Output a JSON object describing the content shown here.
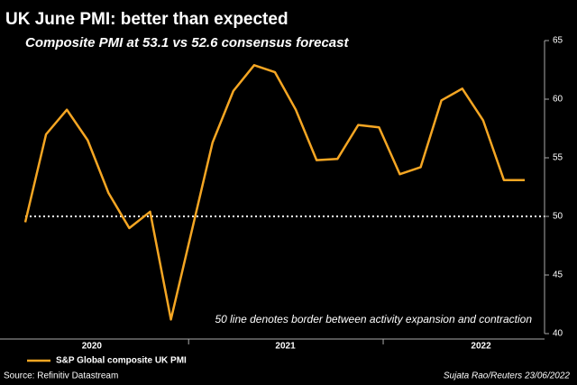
{
  "chart_data": {
    "type": "line",
    "title": "UK June PMI: better than expected",
    "subtitle": "Composite PMI at 53.1 vs 52.6 consensus forecast",
    "x": [
      0,
      1,
      2,
      3,
      4,
      5,
      6,
      7,
      9,
      10,
      11,
      12,
      13,
      14,
      15,
      16,
      17,
      18,
      19,
      20,
      21,
      22,
      23,
      24
    ],
    "series": [
      {
        "name": "S&P Global composite UK PMI",
        "color": "#f5a623",
        "values": [
          49.5,
          57,
          59.1,
          56.5,
          52,
          49,
          50.4,
          41.2,
          56.3,
          60.7,
          62.9,
          62.3,
          59.1,
          54.8,
          54.9,
          57.8,
          57.6,
          53.6,
          54.2,
          59.9,
          60.9,
          58.2,
          53.1,
          53.1
        ]
      }
    ],
    "xlim": [
      0,
      24
    ],
    "xticks": [
      {
        "value": 3.2,
        "label": "2020"
      },
      {
        "value": 12.5,
        "label": "2021"
      },
      {
        "value": 21.9,
        "label": "2022"
      }
    ],
    "ylim": [
      40,
      65
    ],
    "yticks": [
      40,
      45,
      50,
      55,
      60,
      65
    ],
    "reference_line": 50,
    "annotation": "50 line denotes border between activity expansion and contraction",
    "source": "Source: Refinitiv Datastream",
    "credit": "Sujata Rao/Reuters 23/06/2022"
  }
}
